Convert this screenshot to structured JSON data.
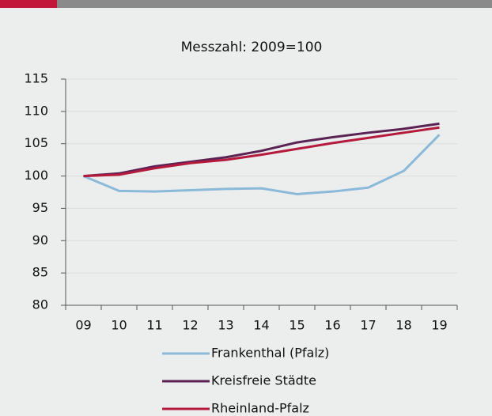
{
  "chart_data": {
    "type": "line",
    "title": "Messzahl: 2009=100",
    "categories": [
      "09",
      "10",
      "11",
      "12",
      "13",
      "14",
      "15",
      "16",
      "17",
      "18",
      "19"
    ],
    "series": [
      {
        "name": "Frankenthal (Pfalz)",
        "color": "#8bbad8",
        "values": [
          100,
          97.7,
          97.6,
          97.8,
          98.0,
          98.1,
          97.2,
          97.6,
          98.2,
          100.8,
          106.4
        ]
      },
      {
        "name": "Kreisfreie Städte",
        "color": "#5b2354",
        "values": [
          100,
          100.4,
          101.5,
          102.2,
          102.9,
          103.9,
          105.2,
          106.0,
          106.7,
          107.3,
          108.1
        ]
      },
      {
        "name": "Rheinland-Pfalz",
        "color": "#b51a3c",
        "values": [
          100,
          100.2,
          101.2,
          102.0,
          102.5,
          103.3,
          104.2,
          105.1,
          105.9,
          106.7,
          107.5
        ]
      }
    ],
    "ylim": [
      80,
      115
    ],
    "yticks": [
      80,
      85,
      90,
      95,
      100,
      105,
      110,
      115
    ],
    "grid": true
  }
}
